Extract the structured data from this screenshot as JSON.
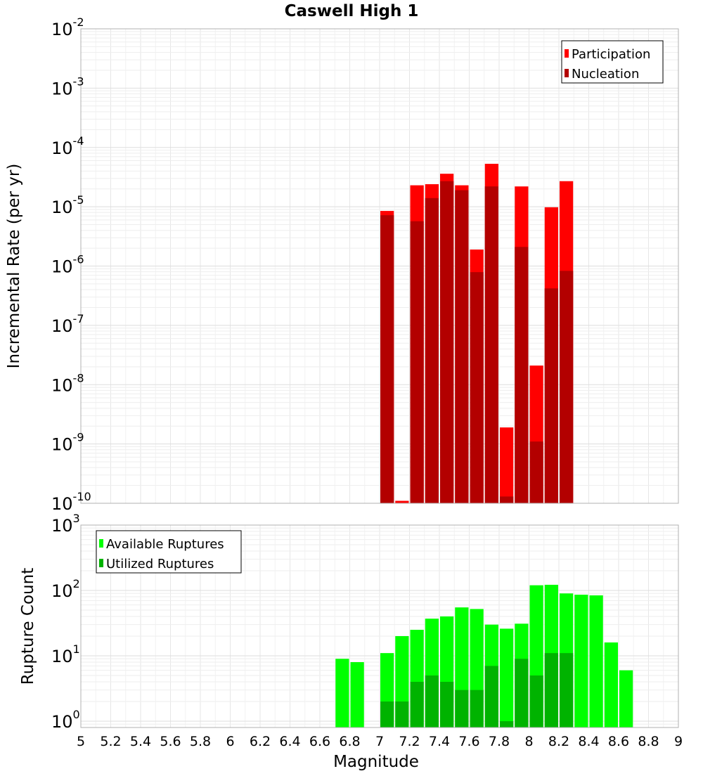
{
  "chart_data": [
    {
      "type": "bar",
      "title": "Caswell High 1",
      "ylabel": "Incremental Rate (per yr)",
      "xlabel": "",
      "y_scale": "log",
      "ylim": [
        1e-10,
        0.01
      ],
      "y_ticks": [
        {
          "base": "10",
          "exp": "-10"
        },
        {
          "base": "10",
          "exp": "-9"
        },
        {
          "base": "10",
          "exp": "-8"
        },
        {
          "base": "10",
          "exp": "-7"
        },
        {
          "base": "10",
          "exp": "-6"
        },
        {
          "base": "10",
          "exp": "-5"
        },
        {
          "base": "10",
          "exp": "-4"
        },
        {
          "base": "10",
          "exp": "-3"
        },
        {
          "base": "10",
          "exp": "-2"
        }
      ],
      "grid": true,
      "legend_position": "top-right",
      "x": [
        7.05,
        7.15,
        7.25,
        7.35,
        7.45,
        7.55,
        7.65,
        7.75,
        7.85,
        7.95,
        8.05,
        8.15,
        8.25
      ],
      "series": [
        {
          "name": "Participation",
          "color": "#ff0000",
          "values": [
            8.5e-06,
            1.1e-10,
            2.3e-05,
            2.4e-05,
            3.6e-05,
            2.3e-05,
            1.9e-06,
            5.3e-05,
            1.9e-09,
            2.2e-05,
            2.1e-08,
            9.8e-06,
            2.7e-05
          ]
        },
        {
          "name": "Nucleation",
          "color": "#b30000",
          "values": [
            7.2e-06,
            1e-10,
            5.7e-06,
            1.4e-05,
            2.7e-05,
            1.9e-05,
            7.9e-07,
            2.2e-05,
            1.3e-10,
            2.1e-06,
            1.1e-09,
            4.2e-07,
            8.3e-07
          ]
        }
      ]
    },
    {
      "type": "bar",
      "title": "",
      "ylabel": "Rupture Count",
      "xlabel": "Magnitude",
      "y_scale": "log",
      "ylim": [
        0.8,
        1000
      ],
      "y_ticks": [
        {
          "base": "10",
          "exp": "0"
        },
        {
          "base": "10",
          "exp": "1"
        },
        {
          "base": "10",
          "exp": "2"
        },
        {
          "base": "10",
          "exp": "3"
        }
      ],
      "xlim": [
        5,
        9
      ],
      "x_ticks": [
        "5",
        "5.2",
        "5.4",
        "5.6",
        "5.8",
        "6",
        "6.2",
        "6.4",
        "6.6",
        "6.8",
        "7",
        "7.2",
        "7.4",
        "7.6",
        "7.8",
        "8",
        "8.2",
        "8.4",
        "8.6",
        "8.8",
        "9"
      ],
      "grid": true,
      "legend_position": "top-left",
      "x": [
        6.75,
        6.85,
        7.05,
        7.15,
        7.25,
        7.35,
        7.45,
        7.55,
        7.65,
        7.75,
        7.85,
        7.95,
        8.05,
        8.15,
        8.25,
        8.35,
        8.45,
        8.55,
        8.65
      ],
      "series": [
        {
          "name": "Available Ruptures",
          "color": "#00ff00",
          "values": [
            9,
            8,
            11,
            20,
            25,
            37,
            40,
            55,
            52,
            30,
            26,
            31,
            120,
            122,
            90,
            86,
            84,
            16,
            6
          ]
        },
        {
          "name": "Utilized Ruptures",
          "color": "#00b300",
          "values": [
            0,
            0,
            2,
            2,
            4,
            5,
            4,
            3,
            3,
            7,
            1,
            9,
            5,
            11,
            11,
            0,
            0,
            0,
            0
          ]
        }
      ]
    }
  ]
}
